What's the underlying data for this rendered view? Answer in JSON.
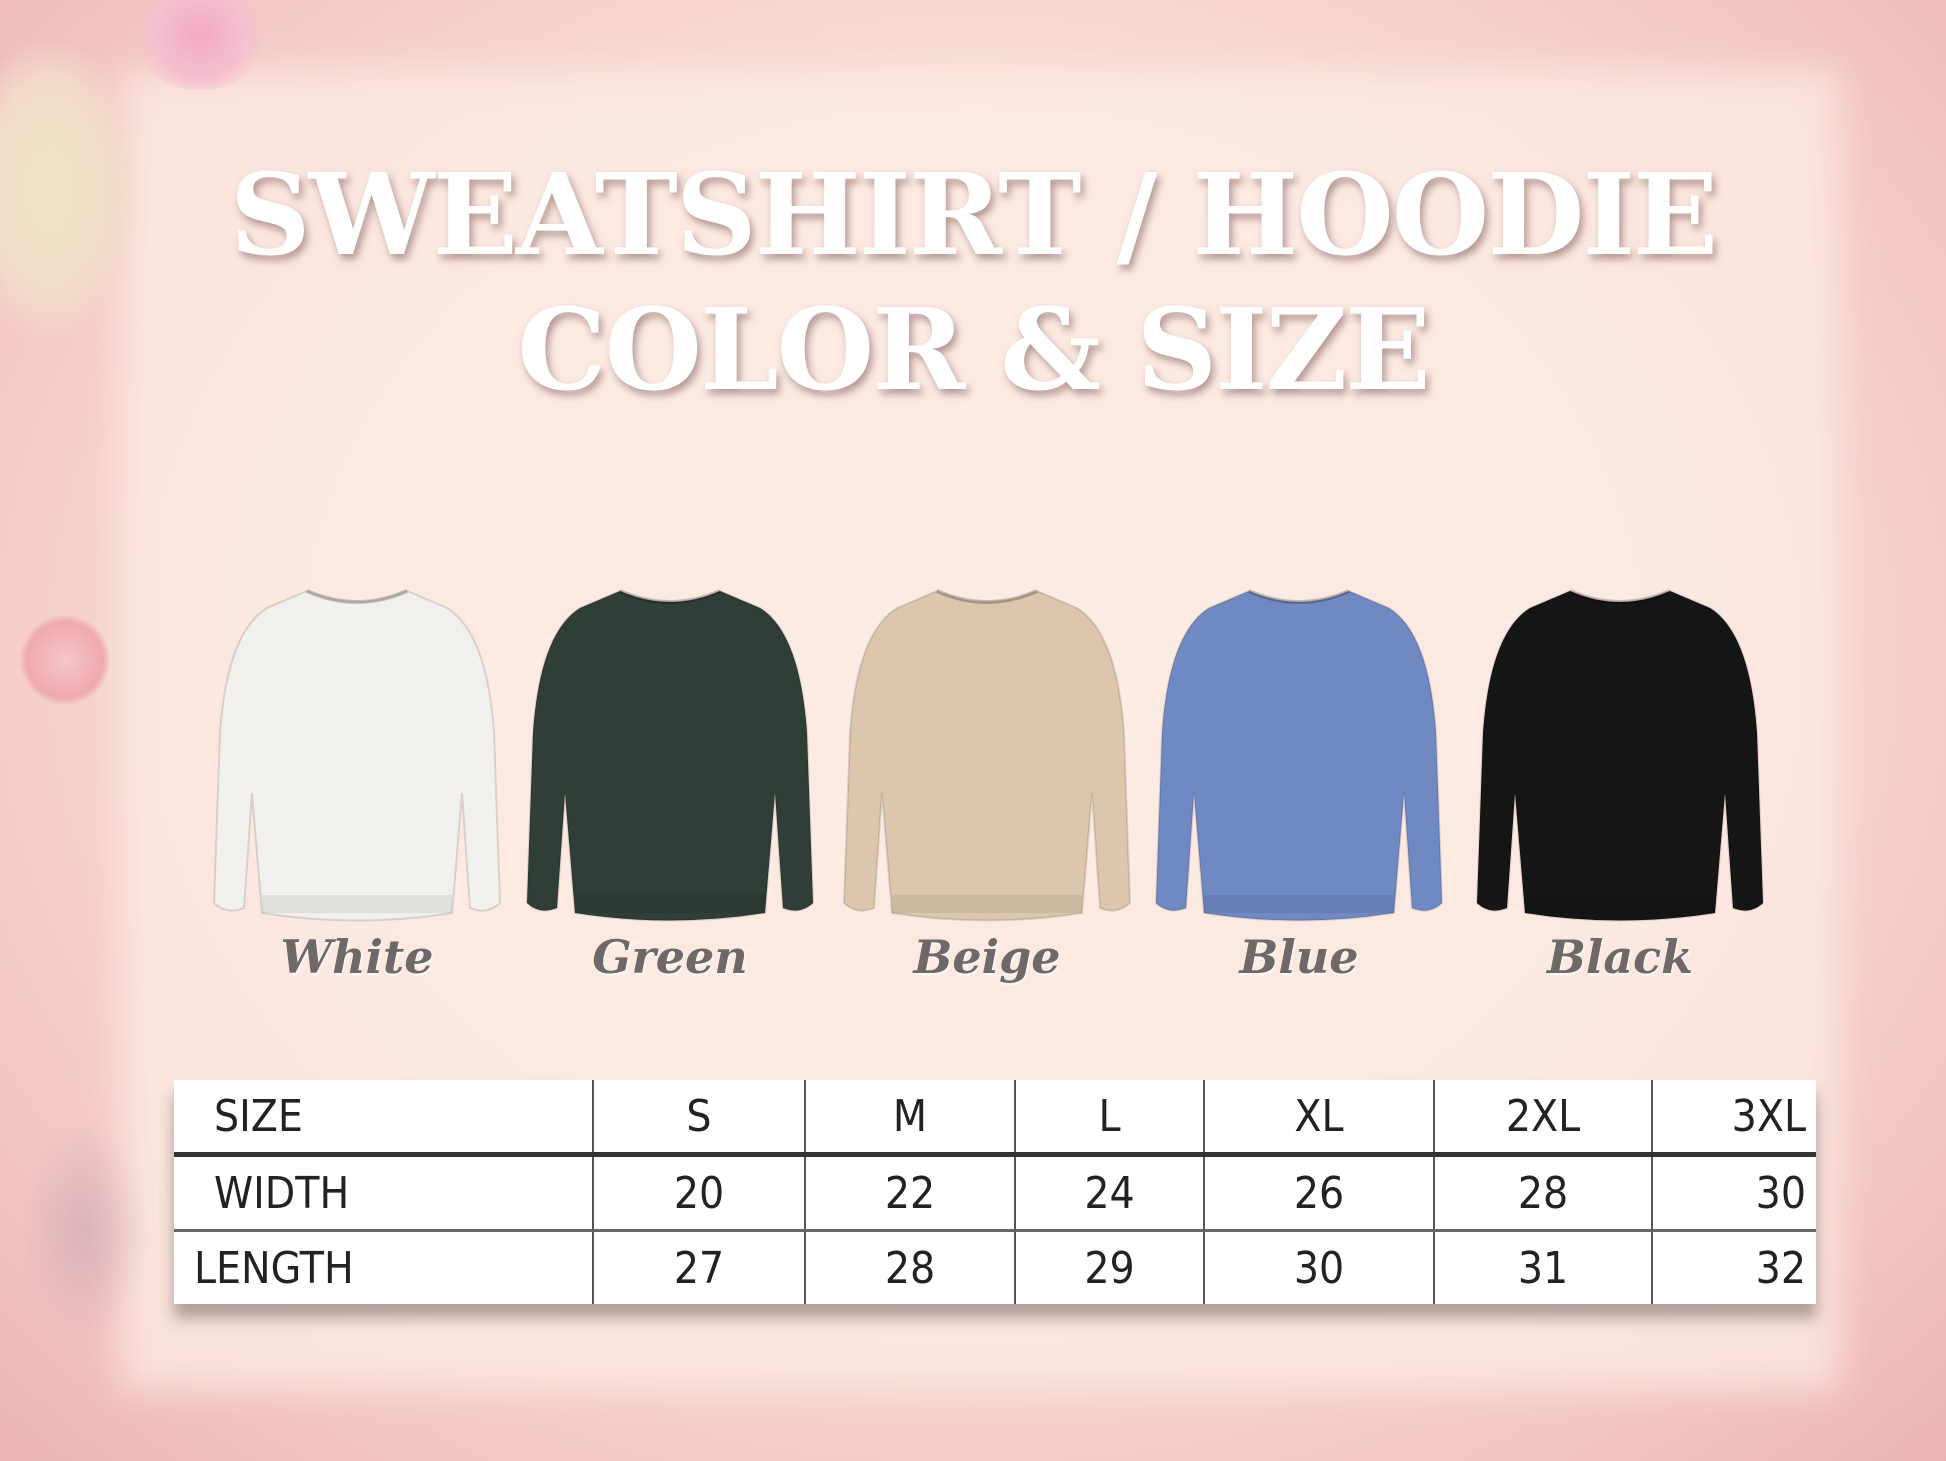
{
  "title": {
    "line1": "SWEATSHIRT / HOODIE",
    "line2": "COLOR & SIZE"
  },
  "colors": [
    {
      "name": "White",
      "hex": "#f1f0ec"
    },
    {
      "name": "Green",
      "hex": "#2f3e36"
    },
    {
      "name": "Beige",
      "hex": "#dcc7ae"
    },
    {
      "name": "Blue",
      "hex": "#7089c3"
    },
    {
      "name": "Black",
      "hex": "#151515"
    }
  ],
  "size_table": {
    "header": [
      "SIZE",
      "S",
      "M",
      "L",
      "XL",
      "2XL",
      "3XL"
    ],
    "rows": [
      [
        "WIDTH",
        "20",
        "22",
        "24",
        "26",
        "28",
        "30"
      ],
      [
        "LENGTH",
        "27",
        "28",
        "29",
        "30",
        "31",
        "32"
      ]
    ]
  }
}
